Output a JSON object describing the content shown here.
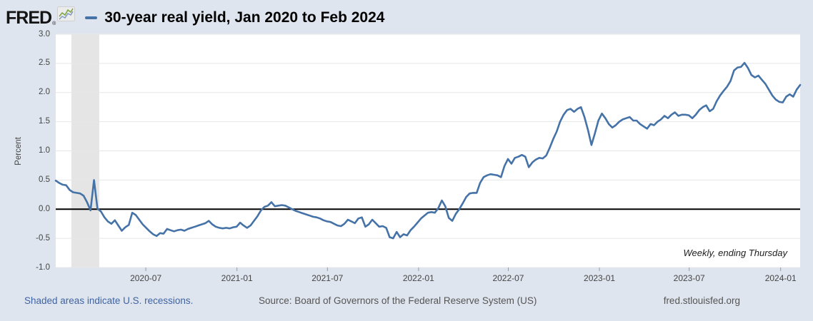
{
  "header": {
    "logo": "FRED",
    "logo_reg": "®",
    "title": "30-year real yield, Jan 2020 to Feb 2024"
  },
  "footer": {
    "recession_note": "Shaded areas indicate U.S. recessions.",
    "source": "Source: Board of Governors of the Federal Reserve System (US)",
    "site": "fred.stlouisfed.org"
  },
  "chart_data": {
    "type": "line",
    "title": "30-year real yield, Jan 2020 to Feb 2024",
    "series_name": "30-year real yield",
    "frequency_note": "Weekly, ending Thursday",
    "ylabel": "Percent",
    "ylim": [
      -1.0,
      3.0
    ],
    "y_ticks": [
      3.0,
      2.5,
      2.0,
      1.5,
      1.0,
      0.5,
      0.0,
      -0.5,
      -1.0
    ],
    "x_tick_labels": [
      "2020-07",
      "2021-01",
      "2021-07",
      "2022-01",
      "2022-07",
      "2023-01",
      "2023-07",
      "2024-01"
    ],
    "x_tick_weeks": [
      25.9,
      52.1,
      78.1,
      104.3,
      130.1,
      156.3,
      182.1,
      208.4
    ],
    "start_date": "2020-01-02",
    "end_date": "2024-02-08",
    "grid": true,
    "line_color": "#4572a7",
    "zero_line_color": "#000000",
    "recession_band": {
      "label": "U.S. recession",
      "start_week": 4.5,
      "end_week": 12.5,
      "color": "#e5e5e5"
    },
    "values": [
      0.49,
      0.45,
      0.42,
      0.41,
      0.33,
      0.29,
      0.28,
      0.27,
      0.23,
      0.12,
      -0.02,
      0.5,
      0.01,
      -0.04,
      -0.14,
      -0.21,
      -0.25,
      -0.19,
      -0.28,
      -0.37,
      -0.31,
      -0.27,
      -0.06,
      -0.1,
      -0.18,
      -0.26,
      -0.32,
      -0.38,
      -0.43,
      -0.46,
      -0.41,
      -0.42,
      -0.34,
      -0.36,
      -0.38,
      -0.36,
      -0.35,
      -0.37,
      -0.34,
      -0.32,
      -0.3,
      -0.28,
      -0.26,
      -0.24,
      -0.2,
      -0.26,
      -0.3,
      -0.32,
      -0.33,
      -0.32,
      -0.33,
      -0.31,
      -0.3,
      -0.23,
      -0.28,
      -0.32,
      -0.28,
      -0.2,
      -0.12,
      -0.02,
      0.04,
      0.06,
      0.12,
      0.05,
      0.06,
      0.07,
      0.06,
      0.03,
      0.0,
      -0.03,
      -0.05,
      -0.07,
      -0.09,
      -0.11,
      -0.13,
      -0.14,
      -0.16,
      -0.19,
      -0.21,
      -0.22,
      -0.25,
      -0.28,
      -0.29,
      -0.25,
      -0.18,
      -0.21,
      -0.24,
      -0.16,
      -0.14,
      -0.3,
      -0.26,
      -0.18,
      -0.24,
      -0.3,
      -0.29,
      -0.32,
      -0.48,
      -0.5,
      -0.39,
      -0.48,
      -0.43,
      -0.45,
      -0.36,
      -0.3,
      -0.23,
      -0.16,
      -0.11,
      -0.06,
      -0.05,
      -0.06,
      0.02,
      0.15,
      0.05,
      -0.15,
      -0.2,
      -0.08,
      0.0,
      0.1,
      0.21,
      0.27,
      0.28,
      0.28,
      0.45,
      0.55,
      0.58,
      0.6,
      0.59,
      0.58,
      0.55,
      0.74,
      0.86,
      0.78,
      0.88,
      0.9,
      0.93,
      0.9,
      0.72,
      0.8,
      0.85,
      0.88,
      0.87,
      0.92,
      1.05,
      1.2,
      1.33,
      1.5,
      1.62,
      1.7,
      1.72,
      1.67,
      1.72,
      1.75,
      1.58,
      1.36,
      1.1,
      1.3,
      1.52,
      1.64,
      1.56,
      1.46,
      1.4,
      1.44,
      1.5,
      1.54,
      1.56,
      1.58,
      1.52,
      1.52,
      1.46,
      1.42,
      1.38,
      1.46,
      1.44,
      1.5,
      1.54,
      1.6,
      1.56,
      1.62,
      1.66,
      1.6,
      1.62,
      1.62,
      1.61,
      1.56,
      1.62,
      1.7,
      1.75,
      1.78,
      1.68,
      1.72,
      1.85,
      1.95,
      2.03,
      2.1,
      2.2,
      2.38,
      2.43,
      2.44,
      2.51,
      2.42,
      2.3,
      2.26,
      2.29,
      2.22,
      2.15,
      2.05,
      1.95,
      1.88,
      1.84,
      1.83,
      1.93,
      1.97,
      1.93,
      2.05,
      2.13
    ]
  },
  "icons": {
    "logo_sparkline": "fred-sparkline-icon"
  }
}
